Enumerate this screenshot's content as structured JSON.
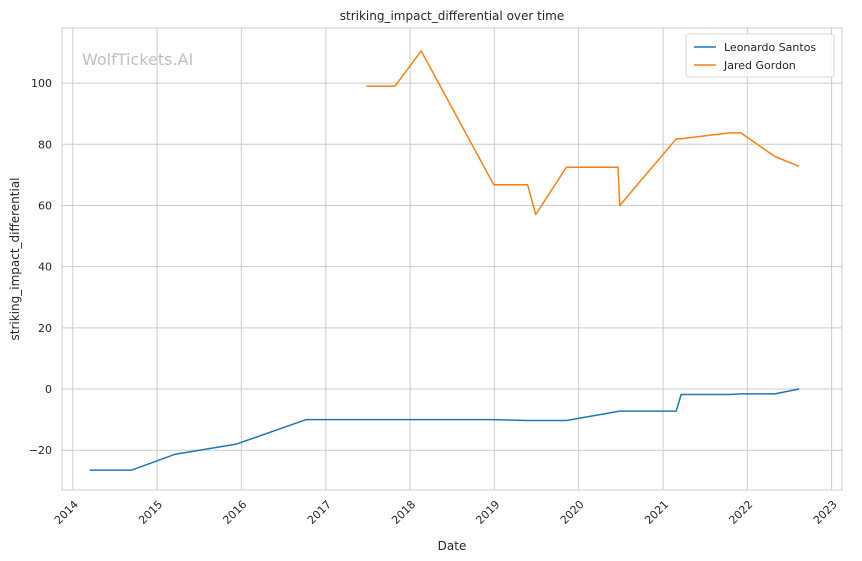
{
  "chart_data": {
    "type": "line",
    "title": "striking_impact_differential over time",
    "xlabel": "Date",
    "ylabel": "striking_impact_differential",
    "watermark": "WolfTickets.AI",
    "xlim": [
      "2013-11-15",
      "2023-02-15"
    ],
    "ylim": [
      -33,
      118
    ],
    "x_ticks": [
      "2014",
      "2015",
      "2016",
      "2017",
      "2018",
      "2019",
      "2020",
      "2021",
      "2022",
      "2023"
    ],
    "y_ticks": [
      -20,
      0,
      20,
      40,
      60,
      80,
      100
    ],
    "grid": true,
    "legend_position": "top-right",
    "series": [
      {
        "name": "Leonardo Santos",
        "color": "#1f77b4",
        "points": [
          [
            "2014-03-15",
            -26.5
          ],
          [
            "2014-09-13",
            -26.5
          ],
          [
            "2015-03-21",
            -21.3
          ],
          [
            "2015-12-10",
            -18.0
          ],
          [
            "2016-10-08",
            -10.0
          ],
          [
            "2017-12-30",
            -10.0
          ],
          [
            "2018-12-29",
            -10.0
          ],
          [
            "2019-05-25",
            -10.3
          ],
          [
            "2019-11-09",
            -10.3
          ],
          [
            "2020-06-27",
            -7.2
          ],
          [
            "2021-02-27",
            -7.2
          ],
          [
            "2021-03-20",
            -1.8
          ],
          [
            "2021-10-16",
            -1.8
          ],
          [
            "2021-12-04",
            -1.6
          ],
          [
            "2022-04-30",
            -1.6
          ],
          [
            "2022-08-13",
            0.0
          ]
        ]
      },
      {
        "name": "Jared Gordon",
        "color": "#ff7f0e",
        "points": [
          [
            "2017-06-25",
            99.0
          ],
          [
            "2017-10-28",
            99.0
          ],
          [
            "2018-02-18",
            110.5
          ],
          [
            "2018-12-29",
            66.8
          ],
          [
            "2019-05-25",
            66.8
          ],
          [
            "2019-06-29",
            57.0
          ],
          [
            "2019-11-09",
            72.5
          ],
          [
            "2020-06-20",
            72.5
          ],
          [
            "2020-06-27",
            60.0
          ],
          [
            "2021-02-27",
            81.8
          ],
          [
            "2021-03-20",
            81.8
          ],
          [
            "2021-10-16",
            83.7
          ],
          [
            "2021-12-04",
            83.7
          ],
          [
            "2022-04-30",
            76.0
          ],
          [
            "2022-08-13",
            72.8
          ]
        ]
      }
    ]
  }
}
